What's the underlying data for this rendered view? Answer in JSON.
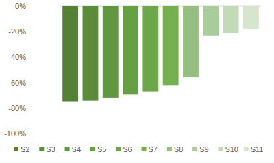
{
  "chart_data": {
    "type": "bar",
    "categories": [
      "S2",
      "S3",
      "S4",
      "S5",
      "S6",
      "S7",
      "S8",
      "S9",
      "S10",
      "S11"
    ],
    "values": [
      -75,
      -74,
      -72,
      -69,
      -67,
      -62,
      -56,
      -23,
      -21,
      -18
    ],
    "colors": [
      "#548235",
      "#5b8c3a",
      "#60973f",
      "#66a043",
      "#6ba849",
      "#74b04e",
      "#94bf80",
      "#a9cc9b",
      "#c2dbb6",
      "#d5e6cc"
    ],
    "ylim": [
      -100,
      0
    ],
    "yticks": [
      {
        "value": 0,
        "label": "0%"
      },
      {
        "value": -20,
        "label": "-20%"
      },
      {
        "value": -40,
        "label": "-40%"
      },
      {
        "value": -60,
        "label": "-60%"
      },
      {
        "value": -80,
        "label": "-80%"
      },
      {
        "value": -100,
        "label": "-100%"
      }
    ],
    "grid": false,
    "tick_labels": "y",
    "legend": "bottom"
  }
}
